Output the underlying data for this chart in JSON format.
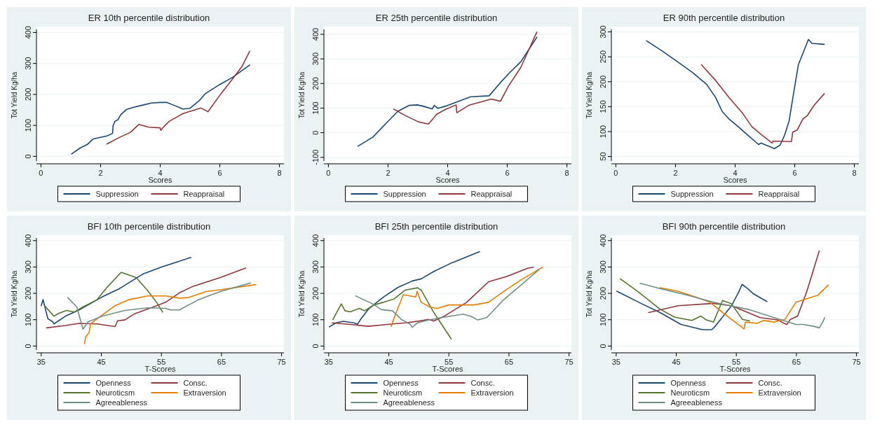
{
  "chart_data": [
    {
      "type": "line",
      "title": "ER 10th percentile distribution",
      "xlabel": "Scores",
      "ylabel": "Tot Yield Kg/ha",
      "xlim": [
        -0.15,
        8.15
      ],
      "xticks": [
        0,
        2,
        4,
        6,
        8
      ],
      "ylim": [
        -15,
        410
      ],
      "yticks": [
        0,
        100,
        200,
        300,
        400
      ],
      "grid": "y",
      "legend": "bottom",
      "series": [
        {
          "name": "Suppression",
          "color": "#1a476f",
          "x": [
            1.03,
            1.33,
            1.55,
            1.75,
            2.02,
            2.21,
            2.4,
            2.42,
            2.48,
            2.59,
            2.67,
            2.86,
            3.09,
            3.39,
            3.7,
            4.0,
            4.23,
            4.46,
            4.76,
            4.99,
            5.3,
            5.52,
            5.98,
            6.44,
            7.0
          ],
          "values": [
            8,
            28,
            38,
            56,
            62,
            66,
            74,
            99,
            113,
            119,
            134,
            151,
            158,
            165,
            172,
            174,
            174,
            165,
            153,
            155,
            179,
            203,
            231,
            256,
            295
          ]
        },
        {
          "name": "Reappraisal",
          "color": "#90353b",
          "x": [
            2.21,
            2.63,
            3.01,
            3.28,
            3.62,
            4.0,
            4.02,
            4.15,
            4.3,
            4.76,
            5.37,
            5.6,
            6.02,
            6.44,
            6.74,
            7.0
          ],
          "values": [
            40,
            61,
            78,
            103,
            94,
            92,
            84,
            99,
            113,
            138,
            156,
            144,
            200,
            252,
            290,
            339
          ]
        }
      ]
    },
    {
      "type": "line",
      "title": "ER  25th percentile distribution",
      "xlabel": "Scores",
      "ylabel": "Tot Yield Kg/ha",
      "xlim": [
        -0.15,
        8.15
      ],
      "xticks": [
        0,
        2,
        4,
        6,
        8
      ],
      "ylim": [
        -115,
        420
      ],
      "yticks": [
        -100,
        0,
        100,
        200,
        300,
        400
      ],
      "grid": "y",
      "legend": "bottom",
      "series": [
        {
          "name": "Suppression",
          "color": "#1a476f",
          "x": [
            0.99,
            1.49,
            1.95,
            2.33,
            2.71,
            2.98,
            3.17,
            3.48,
            3.55,
            3.67,
            3.93,
            4.24,
            4.77,
            5.39,
            5.77,
            6.07,
            6.45,
            6.99
          ],
          "values": [
            -55,
            -18,
            40,
            87,
            111,
            113,
            108,
            97,
            111,
            99,
            108,
            122,
            146,
            150,
            204,
            243,
            288,
            388
          ]
        },
        {
          "name": "Reappraisal",
          "color": "#90353b",
          "x": [
            2.19,
            2.56,
            3.02,
            3.36,
            3.63,
            3.93,
            4.28,
            4.31,
            4.7,
            5.46,
            5.77,
            6.04,
            6.45,
            6.99
          ],
          "values": [
            96,
            71,
            44,
            35,
            75,
            95,
            113,
            81,
            111,
            137,
            128,
            190,
            265,
            409
          ]
        }
      ]
    },
    {
      "type": "line",
      "title": "ER 90th percentile distribution",
      "xlabel": "Scores",
      "ylabel": "Tot Yield Kg/ha",
      "xlim": [
        -0.15,
        8.15
      ],
      "xticks": [
        0,
        2,
        4,
        6,
        8
      ],
      "ylim": [
        41,
        305
      ],
      "yticks": [
        50,
        100,
        150,
        200,
        250,
        300
      ],
      "grid": "y",
      "legend": "bottom",
      "series": [
        {
          "name": "Suppression",
          "color": "#1a476f",
          "x": [
            1.03,
            1.52,
            2.05,
            2.58,
            3.04,
            3.34,
            3.57,
            3.8,
            4.1,
            4.48,
            4.79,
            4.86,
            5.32,
            5.51,
            5.66,
            5.81,
            5.89,
            6.12,
            6.46,
            6.57,
            6.99
          ],
          "values": [
            282,
            263,
            241,
            218,
            195,
            169,
            140,
            125,
            110,
            90,
            74,
            77,
            66,
            73,
            93,
            121,
            151,
            234,
            285,
            277,
            275
          ]
        },
        {
          "name": "Reappraisal",
          "color": "#90353b",
          "x": [
            2.87,
            3.34,
            3.8,
            4.26,
            4.56,
            4.86,
            5.24,
            5.28,
            5.89,
            5.93,
            6.08,
            6.27,
            6.42,
            6.65,
            6.99
          ],
          "values": [
            234,
            203,
            168,
            136,
            110,
            95,
            77,
            81,
            80,
            99,
            103,
            125,
            132,
            153,
            176
          ]
        }
      ]
    },
    {
      "type": "line",
      "title": "BFI  10th percentile distribution",
      "xlabel": "T-Scores",
      "ylabel": "Tot Yield Kg/ha",
      "xlim": [
        34.2,
        75.4
      ],
      "xticks": [
        35,
        45,
        55,
        65,
        75
      ],
      "ylim": [
        -15,
        410
      ],
      "yticks": [
        0,
        100,
        200,
        300,
        400
      ],
      "grid": "y",
      "legend": "bottom",
      "series": [
        {
          "name": "Openness",
          "color": "#1a476f",
          "x": [
            35,
            35.3,
            36.1,
            36.9,
            37.1,
            39.0,
            41.3,
            45.1,
            48.1,
            51.9,
            55,
            59.9
          ],
          "values": [
            153,
            176,
            104,
            92,
            84,
            113,
            137,
            186,
            219,
            273,
            300,
            336
          ]
        },
        {
          "name": "Consc.",
          "color": "#90353b",
          "x": [
            35.9,
            39.0,
            41.3,
            44.3,
            47.3,
            47.7,
            48.9,
            50.4,
            54.2,
            55.7,
            58.0,
            60.3,
            64.8,
            69.0
          ],
          "values": [
            69,
            78,
            86,
            84,
            74,
            96,
            99,
            121,
            153,
            166,
            202,
            227,
            260,
            296
          ]
        },
        {
          "name": "Neuroticsm",
          "color": "#55752f",
          "x": [
            35.6,
            37.1,
            37.8,
            39.2,
            40.5,
            42.0,
            44.3,
            45.8,
            48.3,
            50.8,
            52.7,
            54.2,
            55.2
          ],
          "values": [
            152,
            113,
            123,
            135,
            129,
            149,
            176,
            219,
            280,
            260,
            211,
            166,
            129
          ]
        },
        {
          "name": "Extraversion",
          "color": "#e37e00",
          "x": [
            42.2,
            42.4,
            42.96,
            43.2,
            45.1,
            47.3,
            49.6,
            52.7,
            55.7,
            58,
            59.5,
            62.5,
            65.6,
            70.7
          ],
          "values": [
            9,
            35,
            51,
            84,
            117,
            153,
            176,
            190,
            190,
            182,
            184,
            207,
            216,
            233
          ]
        },
        {
          "name": "Agreeableness",
          "color": "#6e8e84",
          "x": [
            39.4,
            40.9,
            41.95,
            42.8,
            45.1,
            48.9,
            52.7,
            55.7,
            56.5,
            58.0,
            61.0,
            64.8,
            69.8
          ],
          "values": [
            184,
            149,
            64,
            92,
            113,
            135,
            145,
            143,
            137,
            137,
            174,
            207,
            239
          ]
        }
      ]
    },
    {
      "type": "line",
      "title": "BFI  25th percentile distribution",
      "xlabel": "T-Scores",
      "ylabel": "Tot Yield Kg/ha",
      "xlim": [
        34.2,
        75.4
      ],
      "xticks": [
        35,
        45,
        55,
        65,
        75
      ],
      "ylim": [
        -15,
        410
      ],
      "yticks": [
        0,
        100,
        200,
        300,
        400
      ],
      "grid": "y",
      "legend": "bottom",
      "series": [
        {
          "name": "Openness",
          "color": "#1a476f",
          "x": [
            35.1,
            36.2,
            37.4,
            39.2,
            39.8,
            40.3,
            41.6,
            44.1,
            46.5,
            48.9,
            50.4,
            52.5,
            55.5,
            57.96,
            60.1
          ],
          "values": [
            73,
            88,
            94,
            88,
            83,
            101,
            140,
            186,
            222,
            247,
            255,
            283,
            316,
            338,
            358
          ]
        },
        {
          "name": "Consc.",
          "color": "#90353b",
          "x": [
            35.6,
            38.6,
            41.6,
            44.7,
            47.7,
            50.1,
            51.6,
            52.5,
            54.3,
            57.96,
            59.8,
            61.6,
            64.6,
            68.2,
            69.1
          ],
          "values": [
            88,
            82,
            75,
            82,
            88,
            95,
            101,
            95,
            114,
            166,
            205,
            244,
            264,
            296,
            299
          ]
        },
        {
          "name": "Neuroticsm",
          "color": "#55752f",
          "x": [
            35.7,
            37.1,
            37.7,
            38.6,
            40.1,
            41.0,
            41.9,
            42.5,
            44.1,
            45.9,
            47.7,
            49.8,
            50.4,
            52.5,
            55.4
          ],
          "values": [
            101,
            160,
            134,
            130,
            143,
            134,
            147,
            156,
            166,
            179,
            212,
            221,
            212,
            127,
            27
          ]
        },
        {
          "name": "Extraversion",
          "color": "#e37e00",
          "x": [
            45.4,
            46.0,
            47.4,
            49.5,
            49.7,
            50.4,
            51.9,
            53.1,
            55.0,
            59.2,
            61.6,
            64.0,
            67.0,
            70.6
          ],
          "values": [
            75,
            114,
            195,
            186,
            208,
            166,
            147,
            143,
            156,
            156,
            166,
            205,
            251,
            299
          ]
        },
        {
          "name": "Agreeableness",
          "color": "#6e8e84",
          "x": [
            39.5,
            42.3,
            43.8,
            45.6,
            47.1,
            48.6,
            48.9,
            49.8,
            51.3,
            53.7,
            57.4,
            58.6,
            59.8,
            61.3,
            64.0,
            67.0,
            70.0
          ],
          "values": [
            190,
            160,
            138,
            134,
            101,
            82,
            71,
            88,
            97,
            108,
            121,
            114,
            99,
            108,
            173,
            231,
            290
          ]
        }
      ]
    },
    {
      "type": "line",
      "title": "BFI  90th percentile distribution",
      "xlabel": "T-Scores",
      "ylabel": "Tot Yield Kg/ha",
      "xlim": [
        34.2,
        75.4
      ],
      "xticks": [
        35,
        45,
        55,
        65,
        75
      ],
      "ylim": [
        -15,
        410
      ],
      "yticks": [
        0,
        100,
        200,
        300,
        400
      ],
      "grid": "y",
      "legend": "bottom",
      "series": [
        {
          "name": "Openness",
          "color": "#1a476f",
          "x": [
            35.1,
            39.3,
            42.3,
            45.8,
            49.4,
            50.9,
            51.4,
            52.4,
            54.2,
            55.4,
            55.96,
            56.9,
            57.8,
            60.1
          ],
          "values": [
            208,
            160,
            127,
            82,
            62,
            62,
            73,
            101,
            153,
            205,
            234,
            218,
            199,
            169
          ]
        },
        {
          "name": "Consc.",
          "color": "#90353b",
          "x": [
            40.4,
            45.3,
            51.2,
            54.2,
            58.96,
            61.9,
            62.8,
            63.4,
            64.0,
            65.2,
            66.7,
            68.8
          ],
          "values": [
            127,
            153,
            162,
            153,
            108,
            99,
            88,
            82,
            101,
            114,
            205,
            361
          ]
        },
        {
          "name": "Neuroticsm",
          "color": "#55752f",
          "x": [
            35.7,
            38.7,
            42.3,
            44.7,
            47.6,
            49.1,
            50.0,
            51.2,
            52.7,
            54.2,
            56.0,
            57.2
          ],
          "values": [
            255,
            205,
            140,
            110,
            97,
            114,
            99,
            91,
            173,
            160,
            101,
            95
          ]
        },
        {
          "name": "Extraversion",
          "color": "#e37e00",
          "x": [
            42.3,
            45.3,
            48.2,
            50.6,
            54.2,
            56.3,
            56.5,
            58.4,
            59.6,
            61.3,
            63.1,
            64.9,
            68.5,
            70.3
          ],
          "values": [
            221,
            208,
            186,
            166,
            101,
            65,
            91,
            86,
            97,
            91,
            101,
            166,
            192,
            231
          ]
        },
        {
          "name": "Agreeableness",
          "color": "#6e8e84",
          "x": [
            39.0,
            42.3,
            47.0,
            51.2,
            57.2,
            61.3,
            64.9,
            66.1,
            67.9,
            68.8,
            69.4,
            69.7
          ],
          "values": [
            238,
            218,
            192,
            166,
            138,
            108,
            82,
            82,
            75,
            69,
            91,
            108
          ]
        }
      ]
    }
  ]
}
